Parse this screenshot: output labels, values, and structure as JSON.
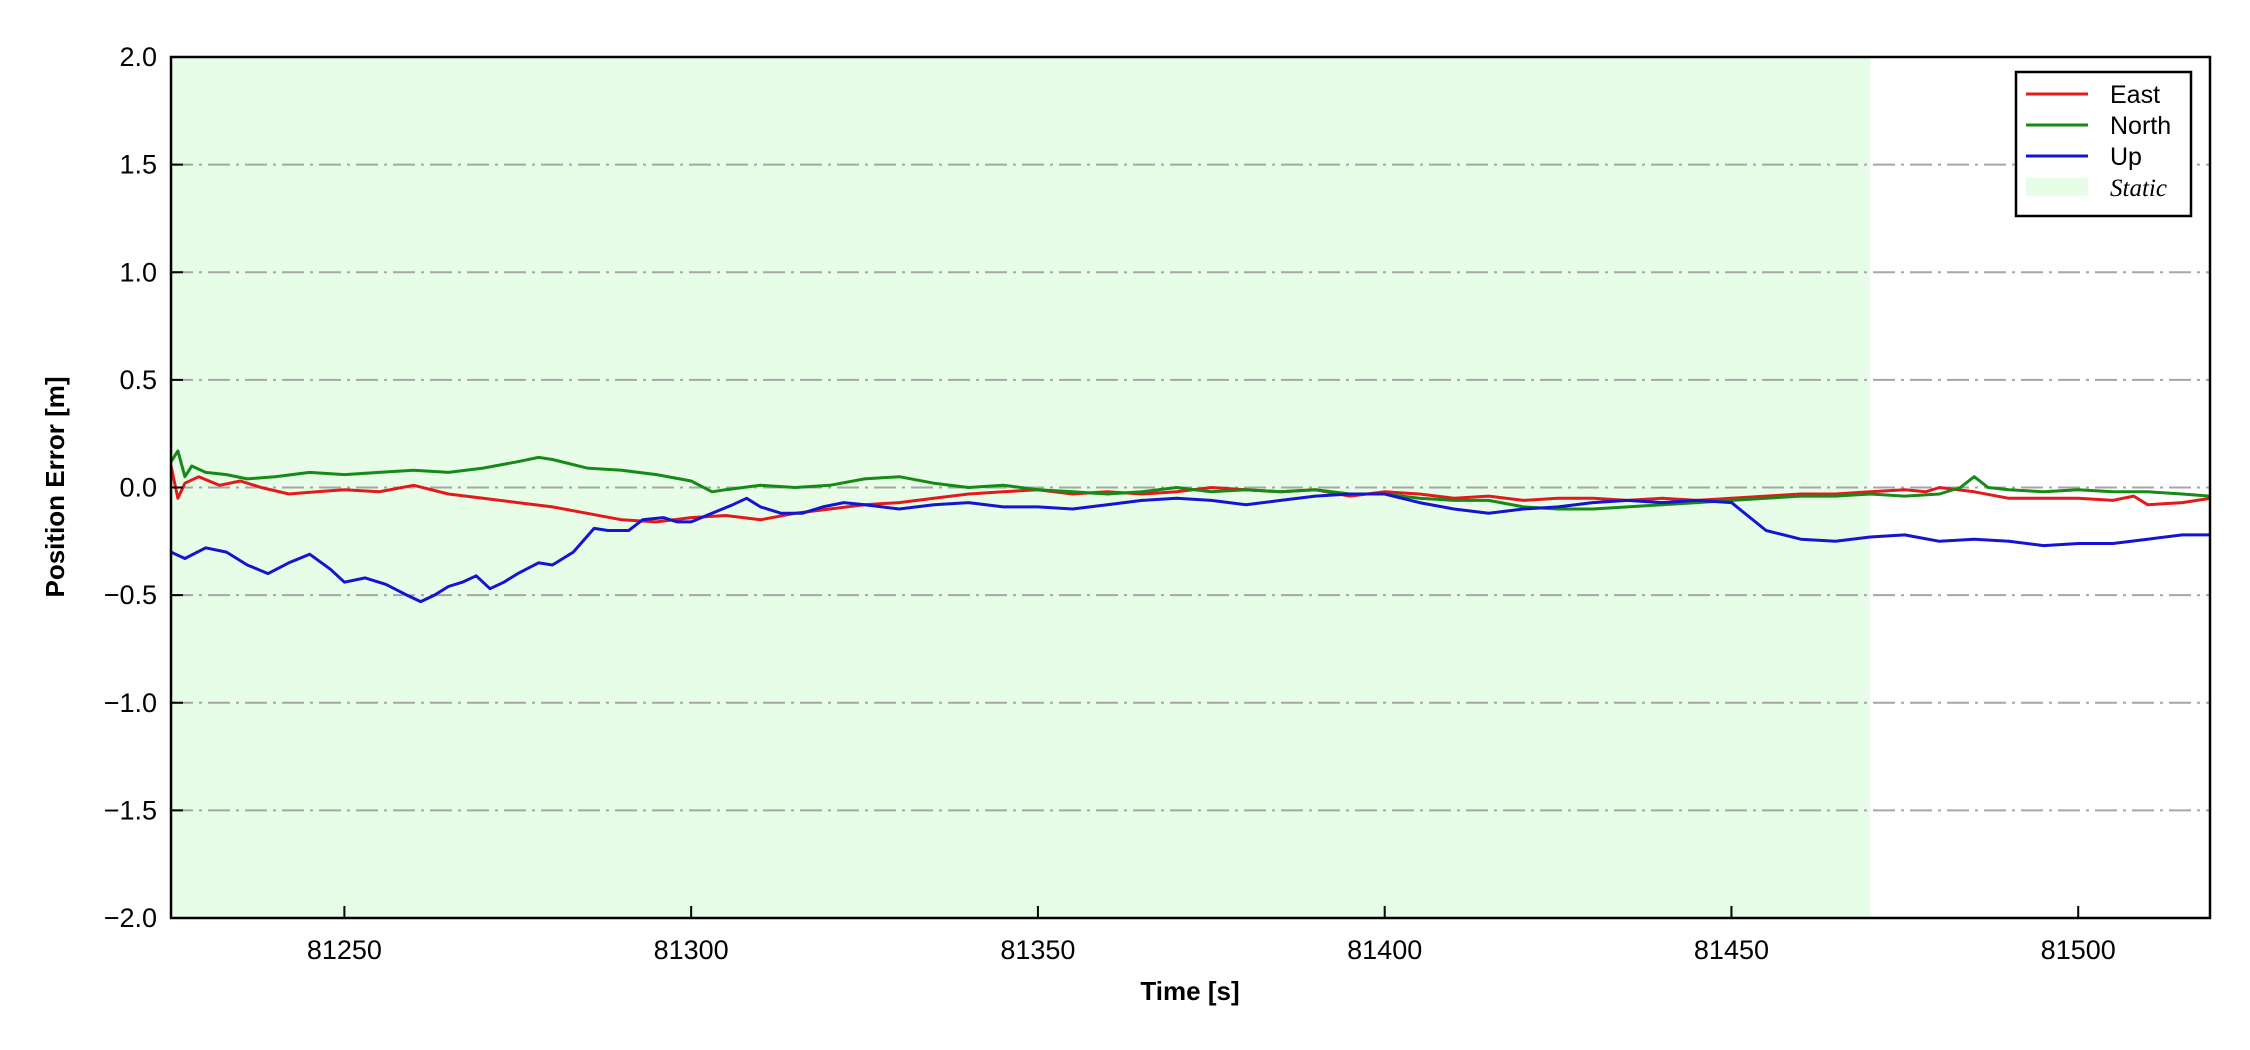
{
  "chart_data": {
    "type": "line",
    "title": "",
    "xlabel": "Time [s]",
    "ylabel": "Position Error [m]",
    "xlim": [
      81225,
      81519
    ],
    "ylim": [
      -2.0,
      2.0
    ],
    "x_ticks": [
      81250,
      81300,
      81350,
      81400,
      81450,
      81500
    ],
    "y_ticks": [
      2.0,
      1.5,
      1.0,
      0.5,
      0.0,
      -0.5,
      -1.0,
      -1.5,
      -2.0
    ],
    "y_tick_labels": [
      "2.0",
      "1.5",
      "1.0",
      "0.5",
      "0.0",
      "−0.5",
      "−1.0",
      "−1.5",
      "−2.0"
    ],
    "grid": {
      "y": true,
      "x": false,
      "style": "dashdot",
      "color": "#a6a6a6"
    },
    "legend_position": "top-right",
    "static_region": {
      "label": "Static",
      "x_start": 81225,
      "x_end": 81470,
      "color": "#e8fde8"
    },
    "series": [
      {
        "name": "East",
        "color": "#e31a1c",
        "x": [
          81225,
          81226,
          81227,
          81229,
          81232,
          81235,
          81238,
          81242,
          81246,
          81250,
          81255,
          81260,
          81265,
          81270,
          81275,
          81280,
          81285,
          81290,
          81295,
          81300,
          81305,
          81310,
          81315,
          81320,
          81325,
          81330,
          81335,
          81340,
          81345,
          81350,
          81355,
          81360,
          81365,
          81370,
          81375,
          81380,
          81385,
          81390,
          81395,
          81400,
          81405,
          81410,
          81415,
          81420,
          81425,
          81430,
          81435,
          81440,
          81445,
          81450,
          81455,
          81460,
          81465,
          81470,
          81475,
          81478,
          81480,
          81485,
          81490,
          81495,
          81500,
          81505,
          81508,
          81510,
          81515,
          81519
        ],
        "values": [
          0.1,
          -0.05,
          0.02,
          0.05,
          0.01,
          0.03,
          0.0,
          -0.03,
          -0.02,
          -0.01,
          -0.02,
          0.01,
          -0.03,
          -0.05,
          -0.07,
          -0.09,
          -0.12,
          -0.15,
          -0.16,
          -0.14,
          -0.13,
          -0.15,
          -0.12,
          -0.1,
          -0.08,
          -0.07,
          -0.05,
          -0.03,
          -0.02,
          -0.01,
          -0.03,
          -0.02,
          -0.03,
          -0.02,
          0.0,
          -0.01,
          -0.02,
          -0.01,
          -0.04,
          -0.02,
          -0.03,
          -0.05,
          -0.04,
          -0.06,
          -0.05,
          -0.05,
          -0.06,
          -0.05,
          -0.06,
          -0.05,
          -0.04,
          -0.03,
          -0.03,
          -0.02,
          -0.01,
          -0.02,
          0.0,
          -0.02,
          -0.05,
          -0.05,
          -0.05,
          -0.06,
          -0.04,
          -0.08,
          -0.07,
          -0.05
        ]
      },
      {
        "name": "North",
        "color": "#168a16",
        "x": [
          81225,
          81226,
          81227,
          81228,
          81230,
          81233,
          81236,
          81240,
          81245,
          81250,
          81255,
          81260,
          81265,
          81270,
          81275,
          81278,
          81280,
          81285,
          81290,
          81295,
          81300,
          81303,
          81305,
          81310,
          81315,
          81320,
          81325,
          81330,
          81335,
          81340,
          81345,
          81350,
          81355,
          81360,
          81365,
          81370,
          81375,
          81380,
          81385,
          81390,
          81395,
          81400,
          81405,
          81410,
          81415,
          81420,
          81425,
          81430,
          81435,
          81440,
          81445,
          81450,
          81455,
          81460,
          81465,
          81470,
          81475,
          81480,
          81483,
          81485,
          81487,
          81490,
          81495,
          81500,
          81505,
          81510,
          81515,
          81519
        ],
        "values": [
          0.12,
          0.17,
          0.05,
          0.1,
          0.07,
          0.06,
          0.04,
          0.05,
          0.07,
          0.06,
          0.07,
          0.08,
          0.07,
          0.09,
          0.12,
          0.14,
          0.13,
          0.09,
          0.08,
          0.06,
          0.03,
          -0.02,
          -0.01,
          0.01,
          0.0,
          0.01,
          0.04,
          0.05,
          0.02,
          0.0,
          0.01,
          -0.01,
          -0.02,
          -0.03,
          -0.02,
          0.0,
          -0.02,
          -0.01,
          -0.02,
          -0.01,
          -0.03,
          -0.03,
          -0.05,
          -0.06,
          -0.06,
          -0.09,
          -0.1,
          -0.1,
          -0.09,
          -0.08,
          -0.07,
          -0.06,
          -0.05,
          -0.04,
          -0.04,
          -0.03,
          -0.04,
          -0.03,
          0.0,
          0.05,
          0.0,
          -0.01,
          -0.02,
          -0.01,
          -0.02,
          -0.02,
          -0.03,
          -0.04
        ]
      },
      {
        "name": "Up",
        "color": "#1414d2",
        "x": [
          81225,
          81227,
          81230,
          81233,
          81236,
          81239,
          81242,
          81245,
          81248,
          81250,
          81253,
          81256,
          81259,
          81261,
          81263,
          81265,
          81267,
          81269,
          81271,
          81273,
          81275,
          81278,
          81280,
          81283,
          81286,
          81288,
          81291,
          81293,
          81296,
          81298,
          81300,
          81303,
          81306,
          81308,
          81310,
          81313,
          81316,
          81319,
          81322,
          81325,
          81330,
          81335,
          81340,
          81345,
          81350,
          81355,
          81360,
          81365,
          81370,
          81375,
          81380,
          81385,
          81390,
          81395,
          81400,
          81405,
          81410,
          81415,
          81420,
          81425,
          81430,
          81435,
          81440,
          81445,
          81450,
          81455,
          81460,
          81465,
          81470,
          81475,
          81480,
          81485,
          81490,
          81495,
          81500,
          81505,
          81510,
          81515,
          81519
        ],
        "values": [
          -0.3,
          -0.33,
          -0.28,
          -0.3,
          -0.36,
          -0.4,
          -0.35,
          -0.31,
          -0.38,
          -0.44,
          -0.42,
          -0.45,
          -0.5,
          -0.53,
          -0.5,
          -0.46,
          -0.44,
          -0.41,
          -0.47,
          -0.44,
          -0.4,
          -0.35,
          -0.36,
          -0.3,
          -0.19,
          -0.2,
          -0.2,
          -0.15,
          -0.14,
          -0.16,
          -0.16,
          -0.12,
          -0.08,
          -0.05,
          -0.09,
          -0.12,
          -0.12,
          -0.09,
          -0.07,
          -0.08,
          -0.1,
          -0.08,
          -0.07,
          -0.09,
          -0.09,
          -0.1,
          -0.08,
          -0.06,
          -0.05,
          -0.06,
          -0.08,
          -0.06,
          -0.04,
          -0.03,
          -0.03,
          -0.07,
          -0.1,
          -0.12,
          -0.1,
          -0.09,
          -0.07,
          -0.06,
          -0.07,
          -0.06,
          -0.07,
          -0.2,
          -0.24,
          -0.25,
          -0.23,
          -0.22,
          -0.25,
          -0.24,
          -0.25,
          -0.27,
          -0.26,
          -0.26,
          -0.24,
          -0.22,
          -0.22
        ]
      }
    ]
  }
}
